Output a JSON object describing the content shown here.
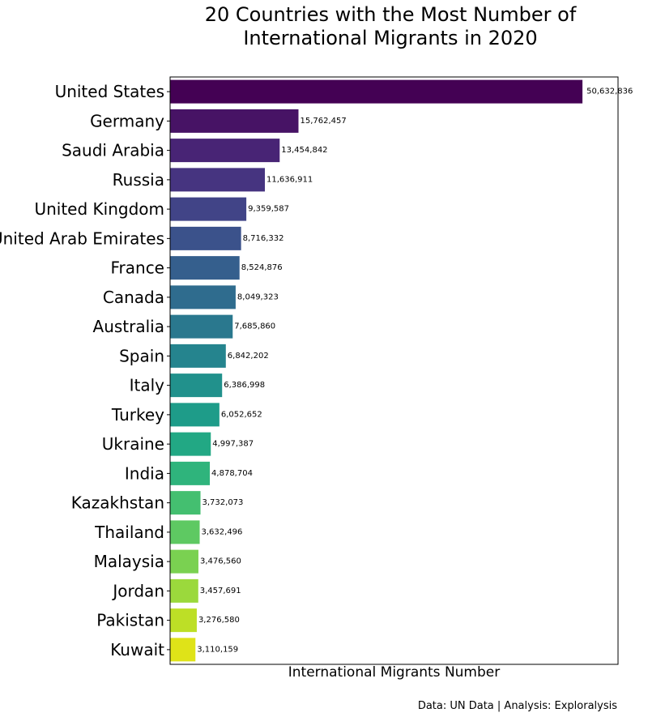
{
  "chart_data": {
    "type": "bar",
    "orientation": "horizontal",
    "title_lines": [
      "20 Countries with the Most Number of",
      "International Migrants in 2020"
    ],
    "xlabel": "International Migrants Number",
    "ylabel": "",
    "credit": "Data: UN Data | Analysis: Exploralysis",
    "xlim": [
      0,
      55000000
    ],
    "x_ticks_visible": false,
    "grid": false,
    "colormap": "viridis",
    "categories": [
      "United States",
      "Germany",
      "Saudi Arabia",
      "Russia",
      "United Kingdom",
      "United Arab Emirates",
      "France",
      "Canada",
      "Australia",
      "Spain",
      "Italy",
      "Turkey",
      "Ukraine",
      "India",
      "Kazakhstan",
      "Thailand",
      "Malaysia",
      "Jordan",
      "Pakistan",
      "Kuwait"
    ],
    "values": [
      50632836,
      15762457,
      13454842,
      11636911,
      9359587,
      8716332,
      8524876,
      8049323,
      7685860,
      6842202,
      6386998,
      6052652,
      4997387,
      4878704,
      3732073,
      3632496,
      3476560,
      3457691,
      3276580,
      3110159
    ],
    "value_labels": [
      "50,632,836",
      "15,762,457",
      "13,454,842",
      "11,636,911",
      "9,359,587",
      "8,716,332",
      "8,524,876",
      "8,049,323",
      "7,685,860",
      "6,842,202",
      "6,386,998",
      "6,052,652",
      "4,997,387",
      "4,878,704",
      "3,732,073",
      "3,632,496",
      "3,476,560",
      "3,457,691",
      "3,276,580",
      "3,110,159"
    ],
    "colors": [
      "#440154",
      "#471365",
      "#482475",
      "#463480",
      "#414487",
      "#3b528b",
      "#355f8d",
      "#2f6c8e",
      "#2a788e",
      "#25848e",
      "#21918c",
      "#1e9c89",
      "#22a884",
      "#2fb47c",
      "#44bf70",
      "#5ec962",
      "#7ad151",
      "#9bd93c",
      "#bddf26",
      "#dfe318"
    ]
  }
}
